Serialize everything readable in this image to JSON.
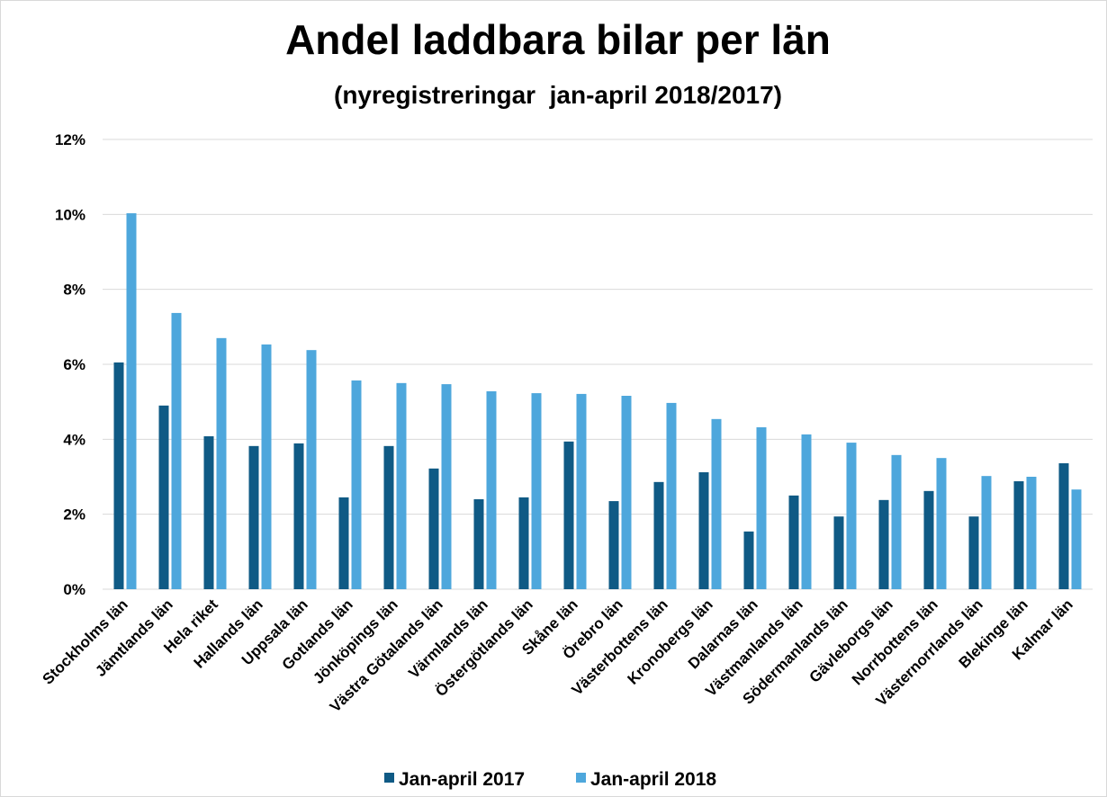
{
  "chart_data": {
    "type": "bar",
    "title": "Andel laddbara bilar per län",
    "subtitle": "(nyregistreringar  jan-april 2018/2017)",
    "categories": [
      "Stockholms län",
      "Jämtlands län",
      "Hela riket",
      "Hallands län",
      "Uppsala län",
      "Gotlands län",
      "Jönköpings län",
      "Västra Götalands län",
      "Värmlands län",
      "Östergötlands län",
      "Skåne län",
      "Örebro län",
      "Västerbottens län",
      "Kronobergs län",
      "Dalarnas län",
      "Västmanlands län",
      "Södermanlands län",
      "Gävleborgs län",
      "Norrbottens län",
      "Västernorrlands län",
      "Blekinge län",
      "Kalmar län"
    ],
    "series": [
      {
        "name": "Jan-april 2017",
        "color": "#0f5a85",
        "values": [
          6.05,
          4.9,
          4.08,
          3.82,
          3.89,
          2.45,
          3.82,
          3.22,
          2.4,
          2.45,
          3.94,
          2.35,
          2.86,
          3.12,
          1.54,
          2.5,
          1.94,
          2.38,
          2.62,
          1.94,
          2.88,
          3.36
        ]
      },
      {
        "name": "Jan-april 2018",
        "color": "#4ea7dc",
        "values": [
          10.03,
          7.37,
          6.7,
          6.53,
          6.38,
          5.57,
          5.5,
          5.47,
          5.28,
          5.23,
          5.21,
          5.16,
          4.97,
          4.54,
          4.32,
          4.13,
          3.91,
          3.58,
          3.5,
          3.02,
          3.0,
          2.66
        ]
      }
    ],
    "ylim": [
      0,
      12
    ],
    "yticks": [
      {
        "value": 0,
        "label": "0%"
      },
      {
        "value": 2,
        "label": "2%"
      },
      {
        "value": 4,
        "label": "4%"
      },
      {
        "value": 6,
        "label": "6%"
      },
      {
        "value": 8,
        "label": "8%"
      },
      {
        "value": 10,
        "label": "10%"
      },
      {
        "value": 12,
        "label": "12%"
      }
    ],
    "grid": true,
    "legend": "bottom"
  }
}
